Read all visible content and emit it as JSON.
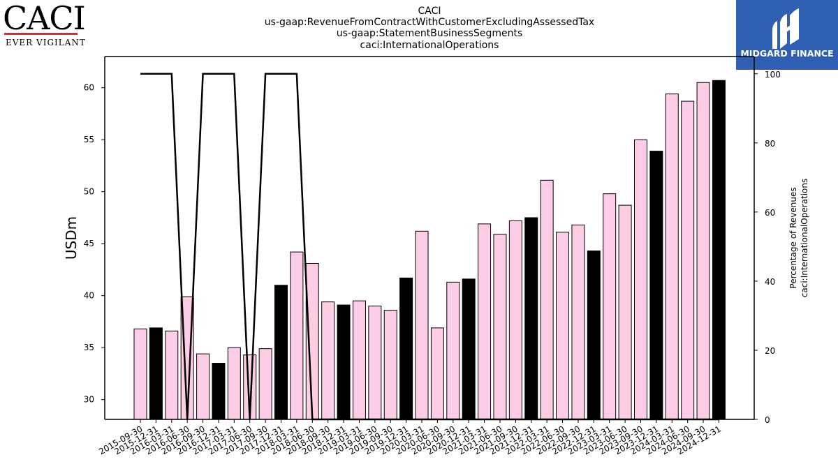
{
  "logos": {
    "company": {
      "name": "CACI",
      "tagline": "EVER VIGILANT",
      "rule_color": "#d32f2f"
    },
    "publisher": {
      "name": "MIDGARD FINANCE",
      "bg_color": "#2f5fb3",
      "icon": "midgard-m-icon"
    }
  },
  "chart_data": {
    "type": "bar",
    "title_lines": [
      "CACI",
      "us-gaap:RevenueFromContractWithCustomerExcludingAssessedTax",
      "us-gaap:StatementBusinessSegments",
      "caci:InternationalOperations"
    ],
    "xlabel": "",
    "ylabel": "USDm",
    "y2label_lines": [
      "Percentage of Revenues",
      "caci:InternationalOperations"
    ],
    "ylim": [
      28.1,
      63.0
    ],
    "y2lim": [
      0,
      105
    ],
    "yticks": [
      30,
      35,
      40,
      45,
      50,
      55,
      60
    ],
    "y2ticks": [
      0,
      20,
      40,
      60,
      80,
      100
    ],
    "colors": {
      "bar_pink": "#fccde5",
      "bar_black": "#000000",
      "line": "#000000"
    },
    "categories": [
      "2015-09-30",
      "2015-12-31",
      "2016-03-31",
      "2016-06-30",
      "2016-09-30",
      "2016-12-31",
      "2017-03-31",
      "2017-06-30",
      "2017-09-30",
      "2017-12-31",
      "2018-03-31",
      "2018-06-30",
      "2018-09-30",
      "2018-12-31",
      "2019-03-31",
      "2019-06-30",
      "2019-09-30",
      "2019-12-31",
      "2020-03-31",
      "2020-06-30",
      "2020-09-30",
      "2020-12-31",
      "2021-03-31",
      "2021-06-30",
      "2021-09-30",
      "2021-12-31",
      "2022-03-31",
      "2022-06-30",
      "2022-09-30",
      "2022-12-31",
      "2023-03-31",
      "2023-06-30",
      "2023-09-30",
      "2023-12-31",
      "2024-03-31",
      "2024-06-30",
      "2024-09-30",
      "2024-12-31"
    ],
    "series": [
      {
        "kind": "bar",
        "values": [
          36.8,
          36.9,
          36.6,
          39.9,
          34.4,
          33.5,
          35.0,
          34.3,
          34.9,
          41.0,
          44.2,
          43.1,
          39.4,
          39.1,
          39.5,
          39.0,
          38.6,
          41.7,
          46.2,
          36.9,
          41.3,
          41.6,
          46.9,
          45.9,
          47.2,
          47.5,
          51.1,
          46.1,
          46.8,
          44.3,
          49.8,
          48.7,
          55.0,
          53.9,
          59.4,
          58.7,
          60.5,
          60.7
        ],
        "fills": [
          "pink",
          "black",
          "pink",
          "pink",
          "pink",
          "black",
          "pink",
          "pink",
          "pink",
          "black",
          "pink",
          "pink",
          "pink",
          "black",
          "pink",
          "pink",
          "pink",
          "black",
          "pink",
          "pink",
          "pink",
          "black",
          "pink",
          "pink",
          "pink",
          "black",
          "pink",
          "pink",
          "pink",
          "black",
          "pink",
          "pink",
          "pink",
          "black",
          "pink",
          "pink",
          "pink",
          "black"
        ]
      },
      {
        "kind": "line",
        "axis": "right",
        "values": [
          100,
          100,
          100,
          0,
          100,
          100,
          100,
          0,
          100,
          100,
          100,
          0,
          0,
          0,
          0,
          0,
          0,
          0,
          0,
          0,
          0,
          0,
          0,
          0,
          0,
          0,
          0,
          0,
          0,
          0,
          0,
          0,
          0,
          0,
          0,
          0,
          0,
          0
        ]
      }
    ]
  }
}
